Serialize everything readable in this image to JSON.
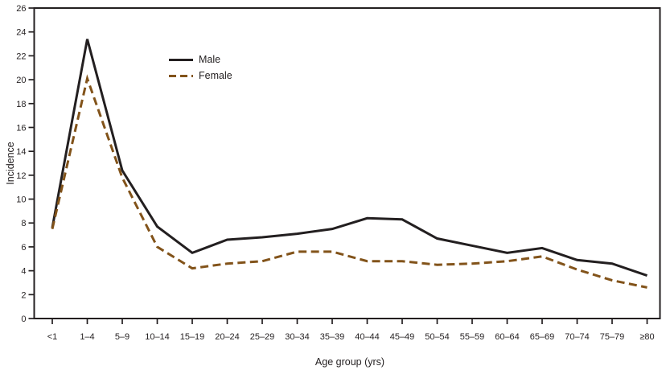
{
  "chart_data": {
    "type": "line",
    "title": "",
    "xlabel": "Age group (yrs)",
    "ylabel": "Incidence",
    "ylim": [
      0,
      26
    ],
    "yticks": [
      0,
      2,
      4,
      6,
      8,
      10,
      12,
      14,
      16,
      18,
      20,
      22,
      24,
      26
    ],
    "grid": false,
    "legend_position": "upper-left-inside",
    "frame_color": "#231f20",
    "categories": [
      "<1",
      "1–4",
      "5–9",
      "10–14",
      "15–19",
      "20–24",
      "25–29",
      "30–34",
      "35–39",
      "40–44",
      "45–49",
      "50–54",
      "55–59",
      "60–64",
      "65–69",
      "70–74",
      "75–79",
      "≥80"
    ],
    "series": [
      {
        "name": "Male",
        "color": "#231f20",
        "line_style": "solid",
        "values": [
          7.6,
          23.4,
          12.4,
          7.7,
          5.5,
          6.6,
          6.8,
          7.1,
          7.5,
          8.4,
          8.3,
          6.7,
          6.1,
          5.5,
          5.9,
          4.9,
          4.6,
          3.6
        ]
      },
      {
        "name": "Female",
        "color": "#82531a",
        "line_style": "dashed",
        "values": [
          7.5,
          20.1,
          11.8,
          6.0,
          4.2,
          4.6,
          4.8,
          5.6,
          5.6,
          4.8,
          4.8,
          4.5,
          4.6,
          4.8,
          5.2,
          4.1,
          3.2,
          2.6
        ]
      }
    ]
  }
}
